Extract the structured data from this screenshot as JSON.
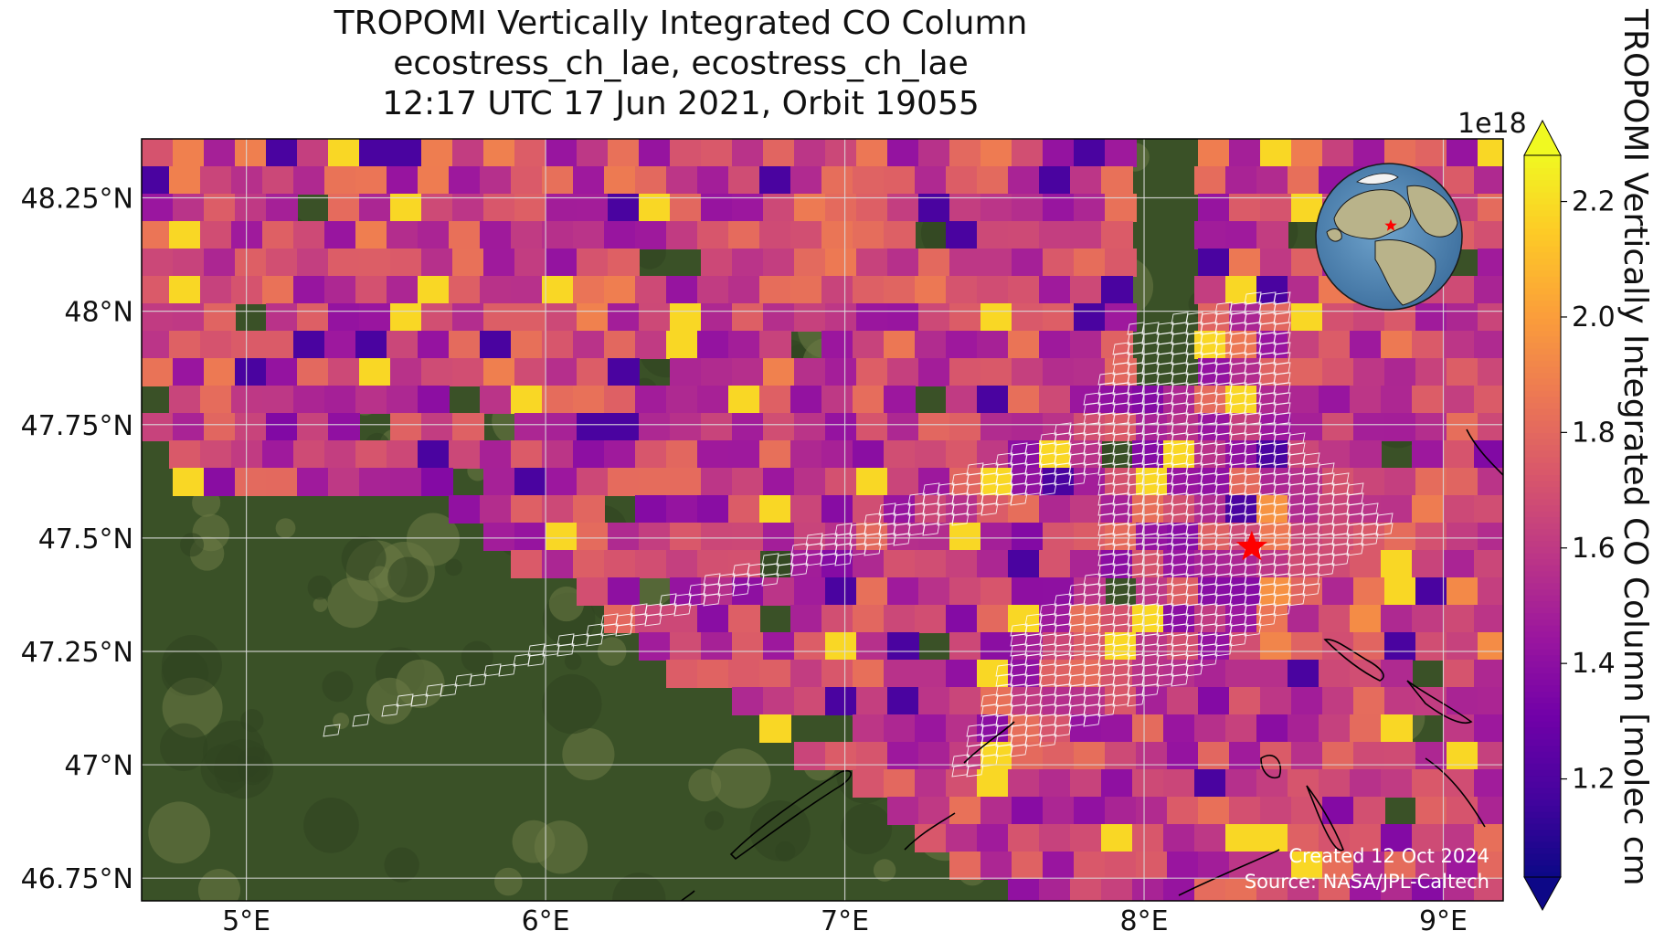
{
  "title": {
    "line1": "TROPOMI Vertically Integrated CO Column",
    "line2": "ecostress_ch_lae, ecostress_ch_lae",
    "line3": "12:17 UTC 17 Jun 2021, Orbit 19055"
  },
  "map": {
    "lon_range": [
      4.65,
      9.2
    ],
    "lat_range": [
      46.7,
      48.38
    ],
    "x_ticks": [
      {
        "value": 5,
        "label": "5°E"
      },
      {
        "value": 6,
        "label": "6°E"
      },
      {
        "value": 7,
        "label": "7°E"
      },
      {
        "value": 8,
        "label": "8°E"
      },
      {
        "value": 9,
        "label": "9°E"
      }
    ],
    "y_ticks": [
      {
        "value": 48.25,
        "label": "48.25°N"
      },
      {
        "value": 48.0,
        "label": "48°N"
      },
      {
        "value": 47.75,
        "label": "47.75°N"
      },
      {
        "value": 47.5,
        "label": "47.5°N"
      },
      {
        "value": 47.25,
        "label": "47.25°N"
      },
      {
        "value": 47.0,
        "label": "47°N"
      },
      {
        "value": 46.75,
        "label": "46.75°N"
      }
    ],
    "grid": true,
    "target_marker": {
      "lon": 8.36,
      "lat": 47.48,
      "color": "#ff0000",
      "shape": "star"
    },
    "overlay": "ECOSTRESS footprint grid (white)"
  },
  "credits": {
    "created": "Created 12 Oct 2024",
    "source": "Source: NASA/JPL-Caltech"
  },
  "colorbar": {
    "label": "TROPOMI Vertically Integrated CO Column [molec cm",
    "exponent": "1e18",
    "range": [
      1.03,
      2.28
    ],
    "ticks": [
      {
        "value": 1.2,
        "label": "1.2"
      },
      {
        "value": 1.4,
        "label": "1.4"
      },
      {
        "value": 1.6,
        "label": "1.6"
      },
      {
        "value": 1.8,
        "label": "1.8"
      },
      {
        "value": 2.0,
        "label": "2.0"
      },
      {
        "value": 2.2,
        "label": "2.2"
      }
    ],
    "colormap": "plasma",
    "extend": "both"
  },
  "colors": {
    "plasma": [
      "#0d0887",
      "#46039f",
      "#7201a8",
      "#9c179e",
      "#bd3786",
      "#d8576b",
      "#ed7953",
      "#fb9f3a",
      "#fdca26",
      "#f0f921"
    ],
    "grid_line": "#dcdcdc",
    "land_dark": "#2f4420",
    "land_light": "#6b7a45"
  },
  "inset": {
    "type": "globe",
    "marker_color": "#ff0000"
  }
}
